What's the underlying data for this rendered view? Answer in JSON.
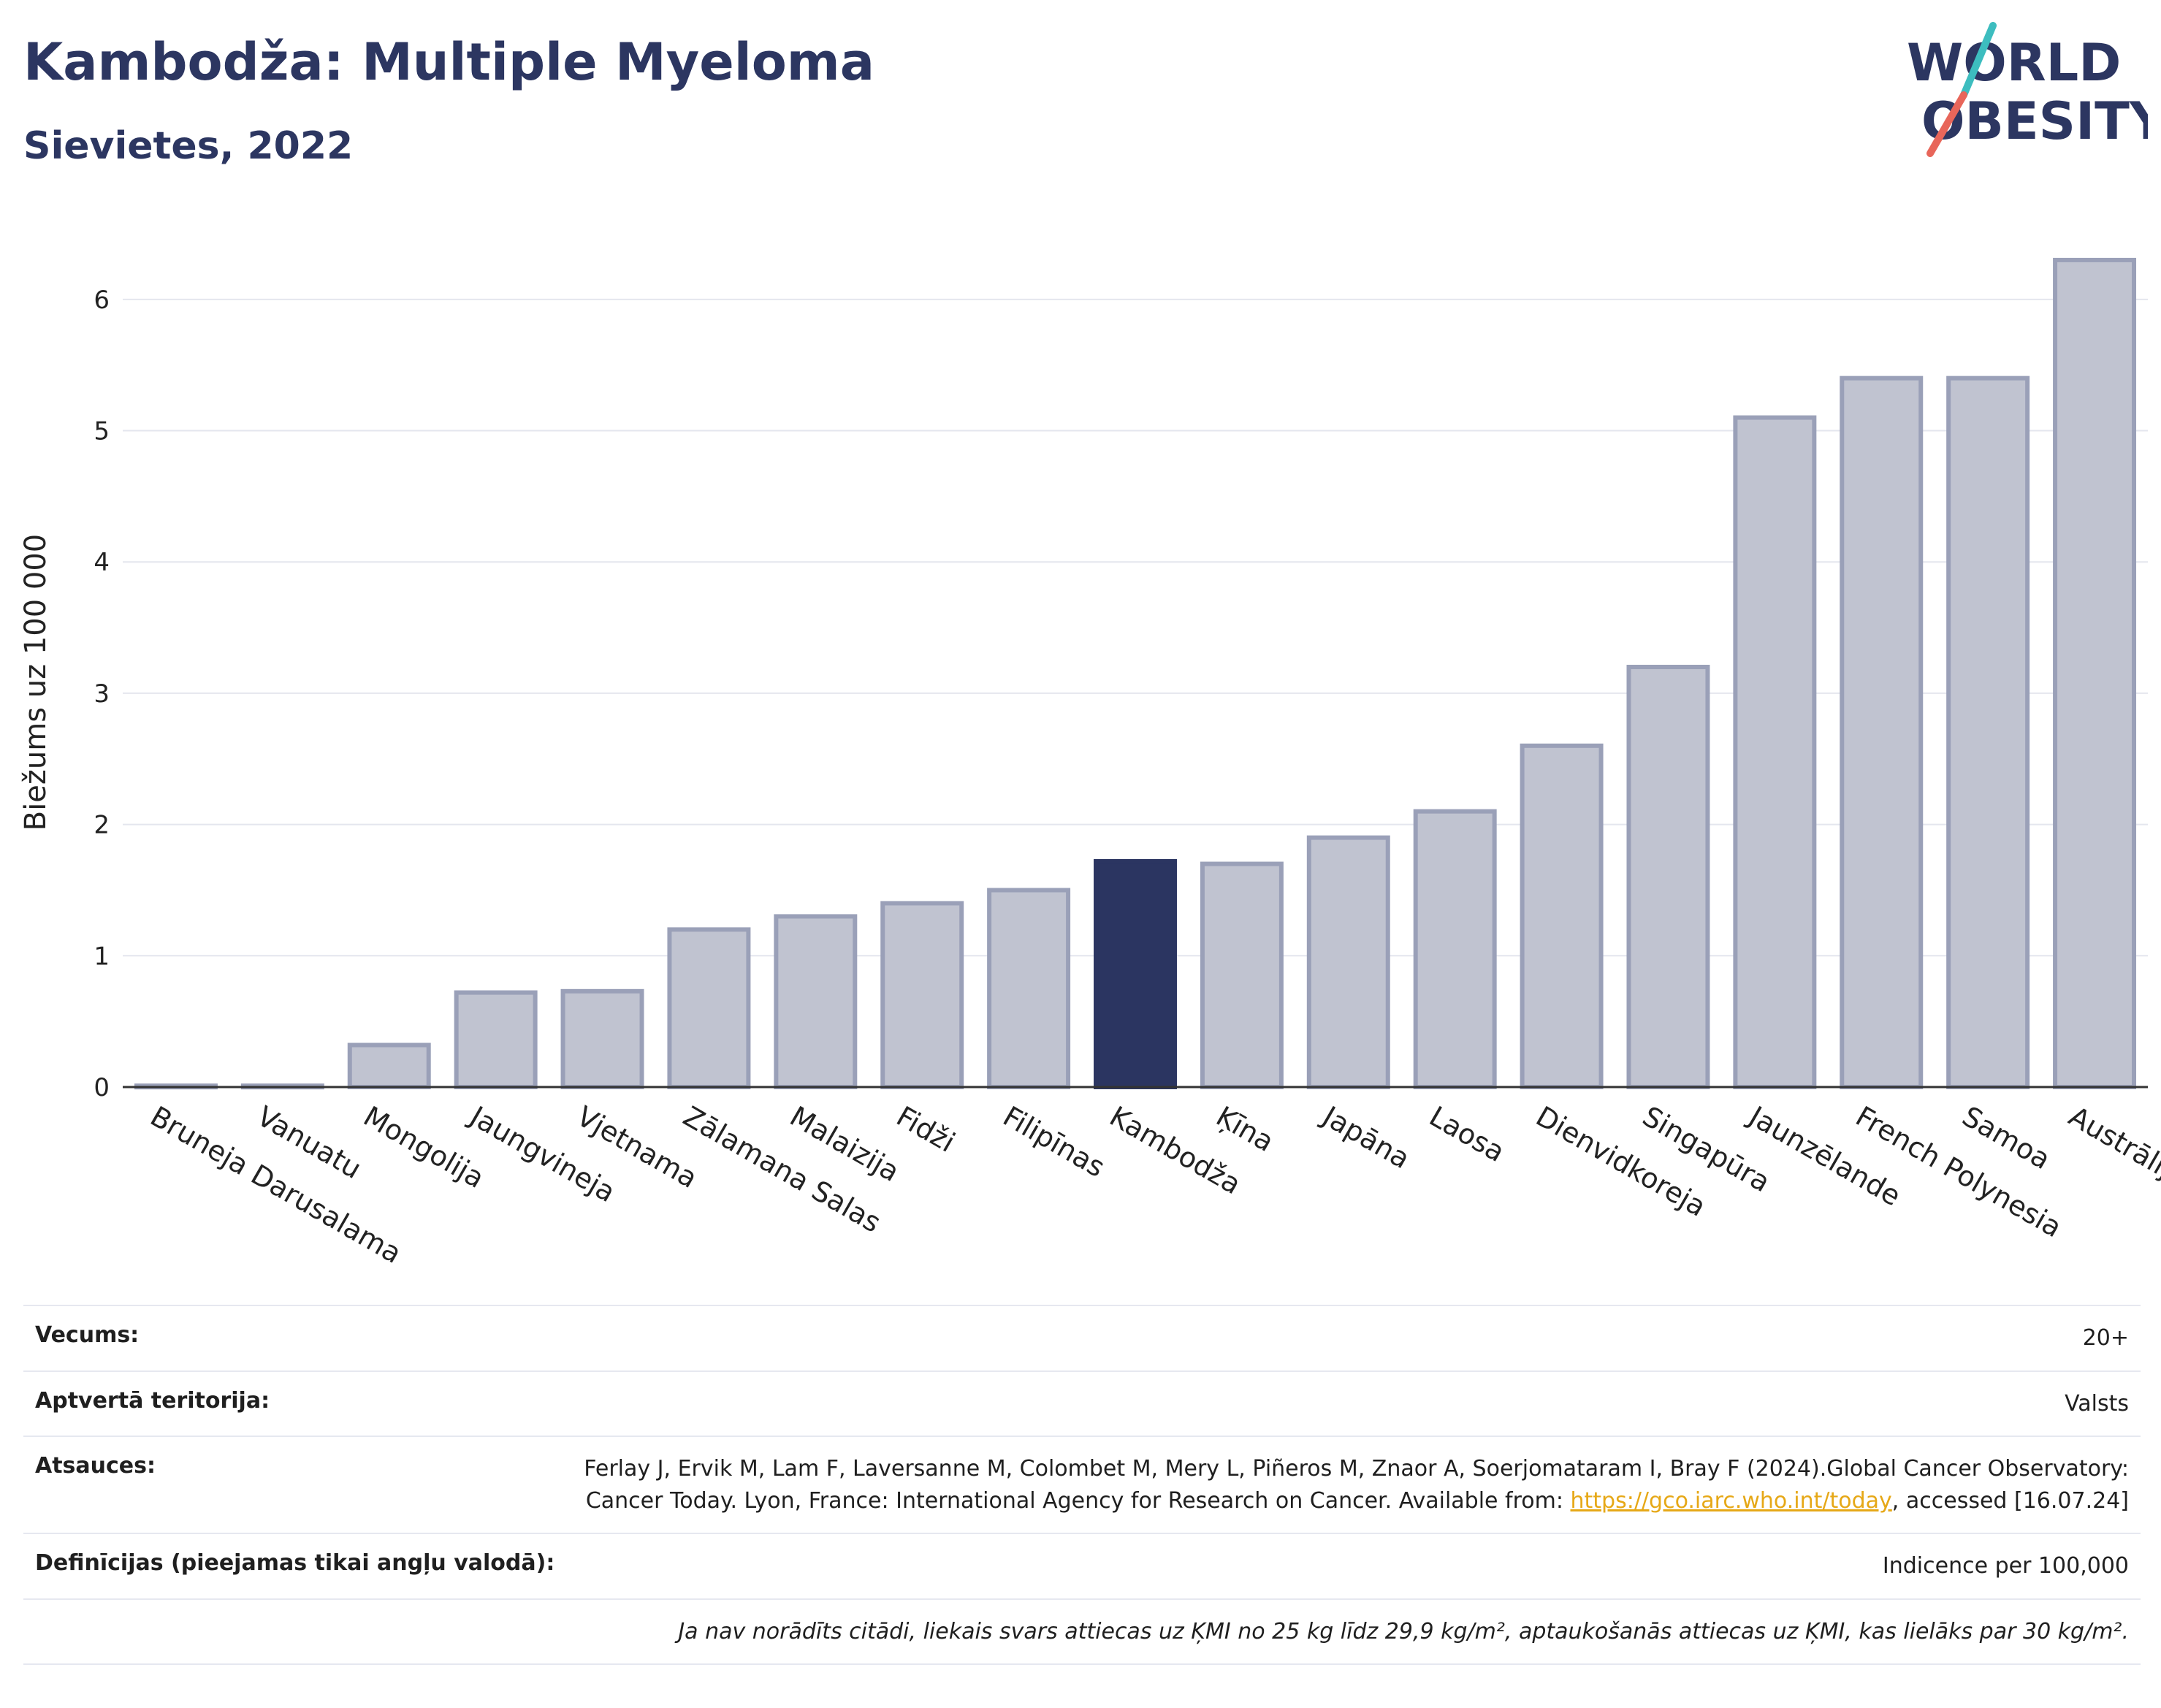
{
  "header": {
    "title": "Kambodža: Multiple Myeloma",
    "subtitle": "Sievietes, 2022"
  },
  "logo": {
    "line1": "WORLD",
    "line2": "OBESITY"
  },
  "chart_data": {
    "type": "bar",
    "ylabel": "Biežums uz 100 000",
    "ylim": [
      0,
      6.5
    ],
    "yticks": [
      0,
      1,
      2,
      3,
      4,
      5,
      6
    ],
    "grid": true,
    "highlight": "Kambodža",
    "colors": {
      "bar": "#c0c3d0",
      "bar_edge": "#9aa0b8",
      "highlight": "#2b3561"
    },
    "categories": [
      "Bruneja Darusalama",
      "Vanuatu",
      "Mongolija",
      "Jaungvineja",
      "Vjetnama",
      "Zālamana Salas",
      "Malaizija",
      "Fidži",
      "Filipīnas",
      "Kambodža",
      "Ķīna",
      "Japāna",
      "Laosa",
      "Dienvidkoreja",
      "Singapūra",
      "Jaunzēlande",
      "French Polynesia",
      "Samoa",
      "Austrālija"
    ],
    "values": [
      0.01,
      0.01,
      0.32,
      0.72,
      0.73,
      1.2,
      1.3,
      1.4,
      1.5,
      1.72,
      1.7,
      1.9,
      2.1,
      2.6,
      3.2,
      5.1,
      5.4,
      5.4,
      6.3
    ]
  },
  "info": {
    "age_label": "Vecums:",
    "age_value": "20+",
    "territory_label": "Aptvertā teritorija:",
    "territory_value": "Valsts",
    "refs_label": "Atsauces:",
    "refs_text1": "Ferlay J, Ervik M, Lam F, Laversanne M, Colombet M, Mery L, Piñeros M, Znaor A, Soerjomataram I, Bray F (2024).Global Cancer Observatory: Cancer Today. Lyon, France: International Agency for Research on Cancer. Available from: ",
    "refs_link": "https://gco.iarc.who.int/today",
    "refs_text2": ", accessed [16.07.24]",
    "def_label": "Definīcijas (pieejamas tikai angļu valodā):",
    "def_value": "Indicence per 100,000",
    "note": "Ja nav norādīts citādi, liekais svars attiecas uz ĶMI no 25 kg līdz 29,9 kg/m², aptaukošanās attiecas uz ĶMI, kas lielāks par 30 kg/m²."
  }
}
